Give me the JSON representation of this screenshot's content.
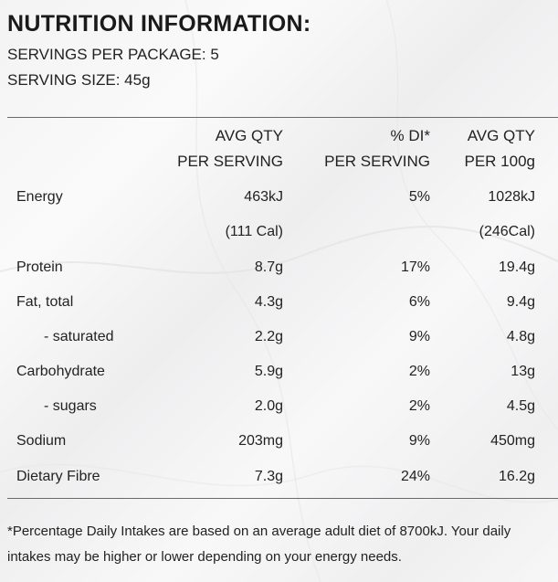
{
  "title": "NUTRITION INFORMATION:",
  "servings_per_package": "SERVINGS PER PACKAGE: 5",
  "serving_size": "SERVING SIZE: 45g",
  "headers": {
    "col1": [
      "AVG QTY",
      "PER SERVING"
    ],
    "col2": [
      "% DI*",
      "PER SERVING"
    ],
    "col3": [
      "AVG QTY",
      "PER 100g"
    ]
  },
  "rows": [
    {
      "label": "Energy",
      "serving": "463kJ",
      "di": "5%",
      "per100": "1028kJ",
      "indent": false
    },
    {
      "label": "",
      "serving": "(111 Cal)",
      "di": "",
      "per100": "(246Cal)",
      "indent": false
    },
    {
      "label": "Protein",
      "serving": "8.7g",
      "di": "17%",
      "per100": "19.4g",
      "indent": false
    },
    {
      "label": "Fat, total",
      "serving": "4.3g",
      "di": "6%",
      "per100": "9.4g",
      "indent": false
    },
    {
      "label": "- saturated",
      "serving": "2.2g",
      "di": "9%",
      "per100": "4.8g",
      "indent": true
    },
    {
      "label": "Carbohydrate",
      "serving": "5.9g",
      "di": "2%",
      "per100": "13g",
      "indent": false
    },
    {
      "label": "- sugars",
      "serving": "2.0g",
      "di": "2%",
      "per100": "4.5g",
      "indent": true
    },
    {
      "label": "Sodium",
      "serving": "203mg",
      "di": "9%",
      "per100": "450mg",
      "indent": false
    },
    {
      "label": "Dietary Fibre",
      "serving": "7.3g",
      "di": "24%",
      "per100": "16.2g",
      "indent": false
    }
  ],
  "footnote": "*Percentage Daily Intakes are based on an average adult diet of 8700kJ. Your daily intakes may be higher or lower depending on your energy needs."
}
